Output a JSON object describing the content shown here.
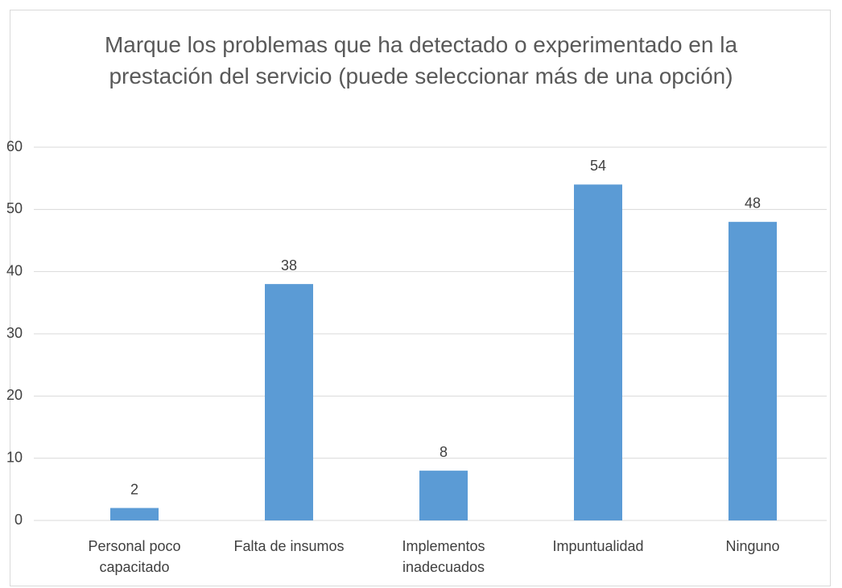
{
  "chart_data": {
    "type": "bar",
    "title": "Marque los problemas que ha detectado o experimentado en la prestación del servicio (puede seleccionar más de una opción)",
    "categories": [
      "Personal poco capacitado",
      "Falta de insumos",
      "Implementos inadecuados",
      "Impuntualidad",
      "Ninguno"
    ],
    "values": [
      2,
      38,
      8,
      54,
      48
    ],
    "color": "#5b9bd5",
    "ylim": [
      0,
      60
    ],
    "yticks": [
      0,
      10,
      20,
      30,
      40,
      50,
      60
    ],
    "grid": true
  }
}
